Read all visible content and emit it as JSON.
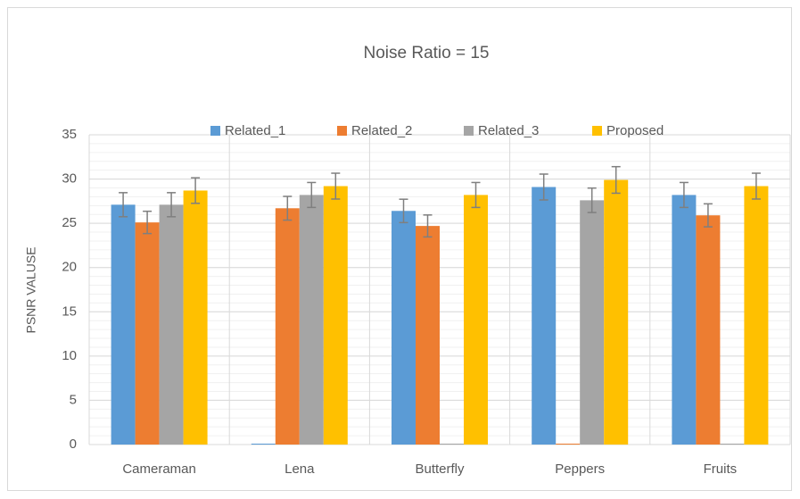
{
  "chart_data": {
    "type": "bar",
    "title": "Noise Ratio = 15",
    "y_label": "PSNR VALUSE",
    "categories": [
      "Cameraman",
      "Lena",
      "Butterfly",
      "Peppers",
      "Fruits"
    ],
    "series": [
      {
        "name": "Related_1",
        "color": "#5b9bd5",
        "values": [
          27.1,
          0,
          26.4,
          29.1,
          28.2
        ],
        "errors": [
          1.36,
          null,
          1.32,
          1.46,
          1.41
        ]
      },
      {
        "name": "Related_2",
        "color": "#ed7d31",
        "values": [
          25.1,
          26.7,
          24.7,
          0,
          25.9
        ],
        "errors": [
          1.26,
          1.34,
          1.24,
          null,
          1.3
        ]
      },
      {
        "name": "Related_3",
        "color": "#a5a5a5",
        "values": [
          27.1,
          28.2,
          0,
          27.6,
          0
        ],
        "errors": [
          1.36,
          1.41,
          null,
          1.38,
          null
        ]
      },
      {
        "name": "Proposed",
        "color": "#ffc000",
        "values": [
          28.7,
          29.2,
          28.2,
          29.9,
          29.2
        ],
        "errors": [
          1.44,
          1.46,
          1.41,
          1.5,
          1.46
        ]
      }
    ],
    "ylim": [
      0,
      35
    ],
    "yticks": [
      0,
      5,
      10,
      15,
      20,
      25,
      30,
      35
    ],
    "grid": true,
    "minor_grid_step": 1,
    "legend": "top"
  }
}
